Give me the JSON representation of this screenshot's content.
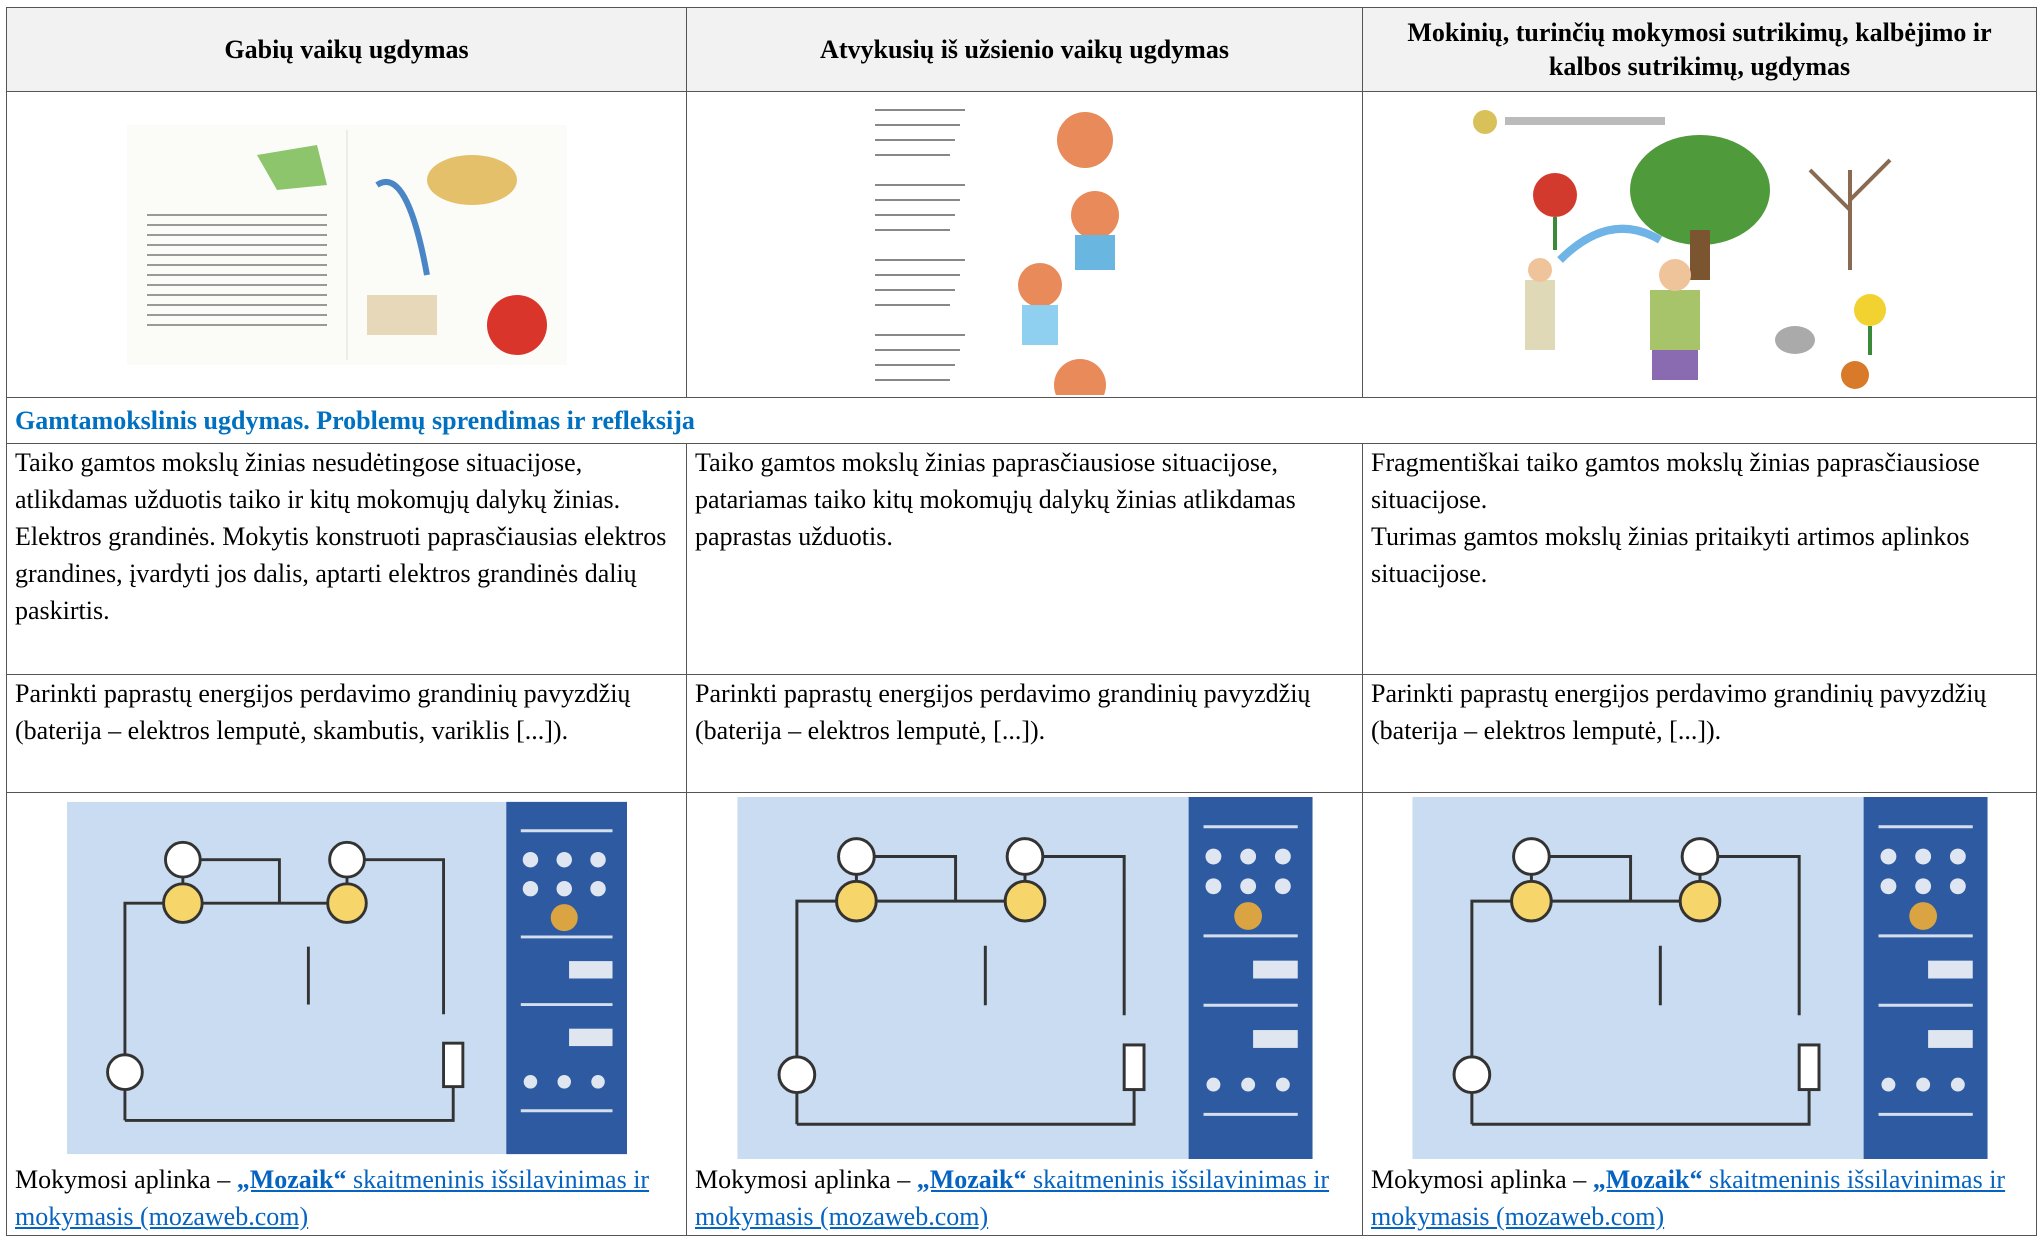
{
  "table": {
    "header": [
      "Gabių vaikų ugdymas",
      "Atvykusių iš užsienio vaikų ugdymas",
      "Mokinių, turinčių mokymosi sutrikimų, kalbėjimo ir kalbos sutrikimų, ugdymas"
    ],
    "section_title": "Gamtamokslinis ugdymas. Problemų sprendimas ir refleksija",
    "rows": [
      [
        [
          "Taiko gamtos mokslų žinias nesudėtingose situacijose, atlikdamas užduotis taiko ir kitų mokomųjų dalykų žinias.",
          "Elektros grandinės. Mokytis konstruoti paprasčiausias elektros grandines, įvardyti jos dalis, aptarti elektros grandinės dalių paskirtis."
        ],
        [
          "Taiko gamtos mokslų žinias paprasčiausiose situacijose, patariamas taiko kitų mokomųjų dalykų žinias atlikdamas paprastas užduotis."
        ],
        [
          "Fragmentiškai taiko gamtos mokslų žinias paprasčiausiose situacijose.",
          "Turimas gamtos mokslų žinias pritaikyti artimos aplinkos situacijose."
        ]
      ],
      [
        [
          "Parinkti paprastų energijos perdavimo grandinių pavyzdžių (baterija – elektros lemputė, skambutis, variklis [...])."
        ],
        [
          "Parinkti paprastų energijos perdavimo grandinių pavyzdžių (baterija – elektros lemputė, [...])."
        ],
        [
          "Parinkti paprastų energijos perdavimo grandinių pavyzdžių (baterija – elektros lemputė, [...])."
        ]
      ]
    ],
    "captions": [
      {
        "text": "Mokymosi aplinka – ",
        "link_bold": "„Mozaik“",
        "link_rest": " skaitmeninis išsilavinimas ir mokymasis (mozaweb.com)"
      },
      {
        "text": "Mokymosi aplinka – ",
        "link_bold": "„Mozaik“",
        "link_rest": " skaitmeninis išsilavinimas ir mokymasis (mozaweb.com)"
      },
      {
        "text": "Mokymosi aplinka – ",
        "link_bold": "„Mozaik“",
        "link_rest": " skaitmeninis išsilavinimas ir mokymasis (mozaweb.com)"
      }
    ]
  }
}
